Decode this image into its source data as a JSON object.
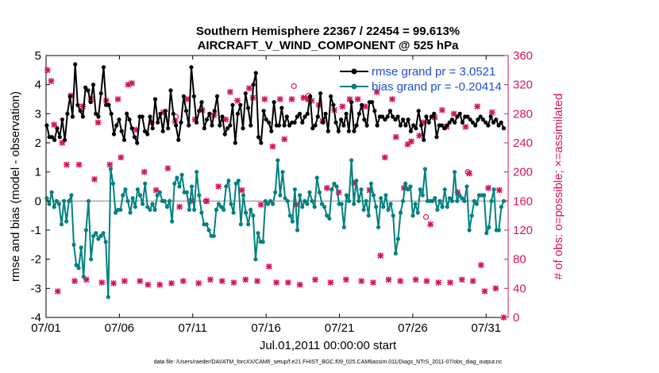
{
  "chart_data": {
    "type": "line",
    "title_line1": "Southern Hemisphere 22367 / 22454 = 99.613%",
    "title_line2": "AIRCRAFT_V_WIND_COMPONENT @ 525 hPa",
    "xlabel": "Jul.01,2011 00:00:00 start",
    "ylabel_left": "rmse and bias (model - observation)",
    "ylabel_right": "# of obs: o=possible; ×=assimilated",
    "footnote": "data file: /Users/raeder/DAI/ATM_forcXX/CAM6_setup/f.e21.FHIST_BGC.f09_025.CAM6assim.011/Diags_NTrS_2011-07/obs_diag_output.nc",
    "xlim": [
      1,
      32.5
    ],
    "ylim_left": [
      -4,
      5
    ],
    "ylim_right": [
      0,
      360
    ],
    "x_ticks": [
      1,
      6,
      11,
      16,
      21,
      26,
      31
    ],
    "x_tick_labels": [
      "07/01",
      "07/06",
      "07/11",
      "07/16",
      "07/21",
      "07/26",
      "07/31"
    ],
    "y_left_ticks": [
      -4,
      -3,
      -2,
      -1,
      0,
      1,
      2,
      3,
      4,
      5
    ],
    "y_left_tick_labels": [
      "-4",
      "-3",
      "-2",
      "-1",
      "0",
      "1",
      "2",
      "3",
      "4",
      "5"
    ],
    "y_right_ticks": [
      0,
      40,
      80,
      120,
      160,
      200,
      240,
      280,
      320,
      360
    ],
    "y_right_tick_labels": [
      "0",
      "40",
      "80",
      "120",
      "160",
      "200",
      "240",
      "280",
      "320",
      "360"
    ],
    "legend_position": "top-right",
    "colors": {
      "rmse": "#000000",
      "bias": "#008080",
      "obs": "#d6145e",
      "zero_line": "#aaaaaa"
    },
    "series": [
      {
        "name": "rmse grand pr = 3.0521",
        "role": "rmse",
        "values": [
          2.6,
          2.2,
          2.2,
          2.1,
          2.5,
          2.2,
          2.8,
          2.1,
          3.0,
          3.6,
          2.9,
          4.7,
          3.3,
          3.1,
          2.9,
          3.9,
          3.8,
          3.4,
          4.0,
          3.0,
          2.9,
          3.7,
          4.6,
          3.3,
          3.3,
          3.0,
          2.3,
          2.6,
          2.8,
          2.4,
          2.1,
          3.0,
          2.8,
          2.5,
          2.2,
          2.0,
          2.9,
          2.9,
          2.4,
          2.3,
          2.9,
          2.5,
          3.5,
          2.7,
          3.0,
          2.4,
          3.1,
          2.5,
          3.8,
          3.0,
          2.6,
          2.1,
          2.7,
          3.6,
          3.1,
          2.6,
          4.6,
          3.6,
          2.7,
          3.1,
          3.4,
          2.5,
          2.8,
          3.0,
          2.6,
          3.1,
          3.6,
          2.6,
          2.9,
          2.3,
          2.5,
          2.6,
          3.3,
          2.0,
          3.0,
          3.3,
          2.5,
          3.7,
          3.2,
          2.6,
          4.0,
          4.4,
          2.2,
          2.0,
          3.1,
          2.8,
          2.7,
          2.4,
          3.4,
          2.6,
          2.6,
          3.2,
          2.6,
          2.9,
          2.6,
          2.7,
          2.7,
          2.9,
          3.0,
          2.7,
          2.9,
          3.0,
          3.6,
          2.5,
          2.6,
          2.9,
          3.7,
          2.7,
          3.0,
          2.4,
          3.6,
          3.3,
          2.7,
          2.4,
          2.8,
          2.6,
          3.0,
          2.4,
          3.4,
          2.4,
          2.6,
          3.0,
          3.3,
          2.8,
          2.6,
          3.4,
          3.4,
          3.1,
          2.6,
          2.9,
          2.9,
          2.8,
          2.9,
          3.1,
          2.9,
          2.8,
          2.9,
          2.6,
          2.8,
          2.6,
          2.8,
          2.4,
          2.6,
          2.5,
          3.1,
          2.6,
          2.1,
          2.9,
          2.7,
          2.9,
          3.0,
          2.2,
          2.6,
          2.6,
          2.5,
          2.6,
          2.7,
          2.8,
          2.7,
          2.9,
          3.0,
          2.7,
          2.9,
          2.9,
          2.8,
          2.7,
          2.6,
          2.8,
          2.9,
          2.8,
          2.7,
          2.6,
          2.9,
          2.7,
          2.8,
          2.6,
          2.7,
          2.5
        ]
      },
      {
        "name": "bias grand pr = -0.20414",
        "role": "bias",
        "values": [
          0.1,
          -0.1,
          0.3,
          -0.2,
          0.0,
          -0.1,
          -0.8,
          0.0,
          -0.7,
          0.0,
          0.2,
          -1.5,
          -2.2,
          -2.3,
          -1.6,
          -2.6,
          -1.0,
          0.0,
          -2.0,
          -1.2,
          -1.1,
          -1.3,
          -1.2,
          -1.1,
          -1.4,
          -3.3,
          1.1,
          0.6,
          -0.4,
          -0.3,
          -0.3,
          0.2,
          0.4,
          0.0,
          -0.4,
          0.1,
          -0.2,
          0.4,
          0.2,
          -0.1,
          0.6,
          -0.2,
          -0.3,
          -0.1,
          -0.3,
          0.2,
          0.3,
          0.0,
          0.0,
          -0.2,
          0.0,
          -0.7,
          0.6,
          0.8,
          0.5,
          0.9,
          0.3,
          0.3,
          -0.3,
          0.5,
          -0.3,
          1.0,
          0.2,
          -0.4,
          -0.8,
          -0.8,
          -1.0,
          -1.2,
          -1.2,
          -0.3,
          -0.1,
          -0.2,
          -0.3,
          0.5,
          0.7,
          -0.1,
          -0.4,
          0.6,
          0.7,
          -0.8,
          0.2,
          -0.4,
          -0.8,
          -0.3,
          -0.5,
          -2.0,
          -1.1,
          -1.4,
          -1.4,
          0.0,
          -0.1,
          0.0,
          -0.1,
          0.3,
          1.4,
          0.2,
          1.0,
          0.1,
          0.0,
          -0.5,
          -0.7,
          0.4,
          -1.0,
          0.2,
          -0.2,
          0.0,
          -0.1,
          0.3,
          0.0,
          -0.2,
          0.8,
          0.3,
          -0.1,
          -0.2,
          -0.5,
          -0.6,
          0.4,
          0.6,
          0.5,
          -0.1,
          -0.1,
          -0.9,
          0.2,
          0.0,
          1.4,
          -0.1,
          0.7,
          0.0,
          0.4,
          -0.3,
          0.0,
          -0.5,
          0.6,
          0.2,
          -0.2,
          -0.9,
          0.1,
          -0.2,
          0.2,
          -0.3,
          -0.1,
          -0.5,
          -1.8,
          -1.3,
          -0.4,
          0.0,
          0.6,
          0.4,
          0.5,
          -0.5,
          -0.1,
          -0.4,
          0.4,
          0.2,
          1.1,
          0.0,
          0.0,
          0.0,
          0.1,
          -0.3,
          0.0,
          -0.2,
          0.4,
          -0.2,
          0.1,
          0.0,
          1.0,
          0.0,
          0.2,
          0.1,
          0.0,
          0.5,
          -1.0,
          -0.5,
          0.0,
          -0.1,
          0.2,
          0.2,
          0.2,
          -1.1,
          -0.9,
          0.0,
          0.4,
          -1.0,
          -1.0,
          -0.2,
          0.0
        ]
      }
    ],
    "obs_assimilated": [
      {
        "x": 1.1,
        "y": 340
      },
      {
        "x": 1.35,
        "y": 325
      },
      {
        "x": 1.55,
        "y": 265
      },
      {
        "x": 1.8,
        "y": 36
      },
      {
        "x": 2.1,
        "y": 240
      },
      {
        "x": 2.4,
        "y": 210
      },
      {
        "x": 2.7,
        "y": 305
      },
      {
        "x": 2.95,
        "y": 50
      },
      {
        "x": 3.25,
        "y": 210
      },
      {
        "x": 3.5,
        "y": 290
      },
      {
        "x": 3.75,
        "y": 52
      },
      {
        "x": 4.05,
        "y": 300
      },
      {
        "x": 4.3,
        "y": 190
      },
      {
        "x": 4.55,
        "y": 268
      },
      {
        "x": 4.8,
        "y": 48
      },
      {
        "x": 5.1,
        "y": 298
      },
      {
        "x": 5.35,
        "y": 210
      },
      {
        "x": 5.6,
        "y": 47
      },
      {
        "x": 5.9,
        "y": 300
      },
      {
        "x": 6.1,
        "y": 220
      },
      {
        "x": 6.35,
        "y": 50
      },
      {
        "x": 6.6,
        "y": 320
      },
      {
        "x": 6.85,
        "y": 322
      },
      {
        "x": 7.15,
        "y": 258
      },
      {
        "x": 7.4,
        "y": 50
      },
      {
        "x": 7.7,
        "y": 200
      },
      {
        "x": 7.95,
        "y": 45
      },
      {
        "x": 8.2,
        "y": 268
      },
      {
        "x": 8.5,
        "y": 175
      },
      {
        "x": 8.75,
        "y": 45
      },
      {
        "x": 9.0,
        "y": 282
      },
      {
        "x": 9.3,
        "y": 205
      },
      {
        "x": 9.55,
        "y": 47
      },
      {
        "x": 9.8,
        "y": 270
      },
      {
        "x": 10.1,
        "y": 152
      },
      {
        "x": 10.35,
        "y": 50
      },
      {
        "x": 10.6,
        "y": 300
      },
      {
        "x": 10.9,
        "y": 160
      },
      {
        "x": 11.15,
        "y": 272
      },
      {
        "x": 11.4,
        "y": 47
      },
      {
        "x": 11.65,
        "y": 285
      },
      {
        "x": 11.95,
        "y": 160
      },
      {
        "x": 12.2,
        "y": 52
      },
      {
        "x": 12.45,
        "y": 278
      },
      {
        "x": 12.75,
        "y": 180
      },
      {
        "x": 13.0,
        "y": 50
      },
      {
        "x": 13.25,
        "y": 272
      },
      {
        "x": 13.55,
        "y": 310
      },
      {
        "x": 13.8,
        "y": 48
      },
      {
        "x": 14.05,
        "y": 298
      },
      {
        "x": 14.35,
        "y": 175
      },
      {
        "x": 14.6,
        "y": 52
      },
      {
        "x": 14.85,
        "y": 315
      },
      {
        "x": 15.1,
        "y": 302
      },
      {
        "x": 15.4,
        "y": 50
      },
      {
        "x": 15.65,
        "y": 155
      },
      {
        "x": 15.9,
        "y": 300
      },
      {
        "x": 16.2,
        "y": 70
      },
      {
        "x": 16.45,
        "y": 235
      },
      {
        "x": 16.7,
        "y": 48
      },
      {
        "x": 16.95,
        "y": 300
      },
      {
        "x": 17.25,
        "y": 245
      },
      {
        "x": 17.5,
        "y": 48
      },
      {
        "x": 17.75,
        "y": 300
      },
      {
        "x": 18.05,
        "y": 155
      },
      {
        "x": 18.3,
        "y": 45
      },
      {
        "x": 18.55,
        "y": 302
      },
      {
        "x": 18.85,
        "y": 300
      },
      {
        "x": 19.1,
        "y": 298
      },
      {
        "x": 19.35,
        "y": 52
      },
      {
        "x": 19.6,
        "y": 292
      },
      {
        "x": 19.85,
        "y": 270
      },
      {
        "x": 20.15,
        "y": 178
      },
      {
        "x": 20.4,
        "y": 48
      },
      {
        "x": 20.65,
        "y": 285
      },
      {
        "x": 20.95,
        "y": 172
      },
      {
        "x": 21.2,
        "y": 290
      },
      {
        "x": 21.45,
        "y": 52
      },
      {
        "x": 21.7,
        "y": 300
      },
      {
        "x": 22.0,
        "y": 185
      },
      {
        "x": 22.25,
        "y": 300
      },
      {
        "x": 22.5,
        "y": 50
      },
      {
        "x": 22.75,
        "y": 290
      },
      {
        "x": 23.05,
        "y": 175
      },
      {
        "x": 23.3,
        "y": 48
      },
      {
        "x": 23.55,
        "y": 310
      },
      {
        "x": 23.8,
        "y": 85
      },
      {
        "x": 24.1,
        "y": 220
      },
      {
        "x": 24.35,
        "y": 52
      },
      {
        "x": 24.6,
        "y": 300
      },
      {
        "x": 24.85,
        "y": 248
      },
      {
        "x": 25.15,
        "y": 50
      },
      {
        "x": 25.4,
        "y": 178
      },
      {
        "x": 25.65,
        "y": 238
      },
      {
        "x": 25.9,
        "y": 242
      },
      {
        "x": 26.2,
        "y": 52
      },
      {
        "x": 26.45,
        "y": 250
      },
      {
        "x": 26.7,
        "y": 268
      },
      {
        "x": 26.95,
        "y": 50
      },
      {
        "x": 27.2,
        "y": 128
      },
      {
        "x": 27.5,
        "y": 275
      },
      {
        "x": 27.75,
        "y": 48
      },
      {
        "x": 28.0,
        "y": 285
      },
      {
        "x": 28.3,
        "y": 262
      },
      {
        "x": 28.55,
        "y": 48
      },
      {
        "x": 28.8,
        "y": 280
      },
      {
        "x": 29.05,
        "y": 172
      },
      {
        "x": 29.35,
        "y": 52
      },
      {
        "x": 29.6,
        "y": 262
      },
      {
        "x": 29.85,
        "y": 198
      },
      {
        "x": 30.1,
        "y": 50
      },
      {
        "x": 30.4,
        "y": 290
      },
      {
        "x": 30.65,
        "y": 72
      },
      {
        "x": 30.9,
        "y": 36
      },
      {
        "x": 31.15,
        "y": 178
      },
      {
        "x": 31.4,
        "y": 282
      },
      {
        "x": 31.65,
        "y": 40
      },
      {
        "x": 31.9,
        "y": 175
      },
      {
        "x": 32.2,
        "y": 0
      }
    ],
    "obs_possible": [
      {
        "x": 9.85,
        "y": 276
      },
      {
        "x": 17.9,
        "y": 318
      },
      {
        "x": 18.9,
        "y": 305
      },
      {
        "x": 26.9,
        "y": 138
      },
      {
        "x": 29.75,
        "y": 200
      },
      {
        "x": 11.9,
        "y": 160
      }
    ]
  }
}
